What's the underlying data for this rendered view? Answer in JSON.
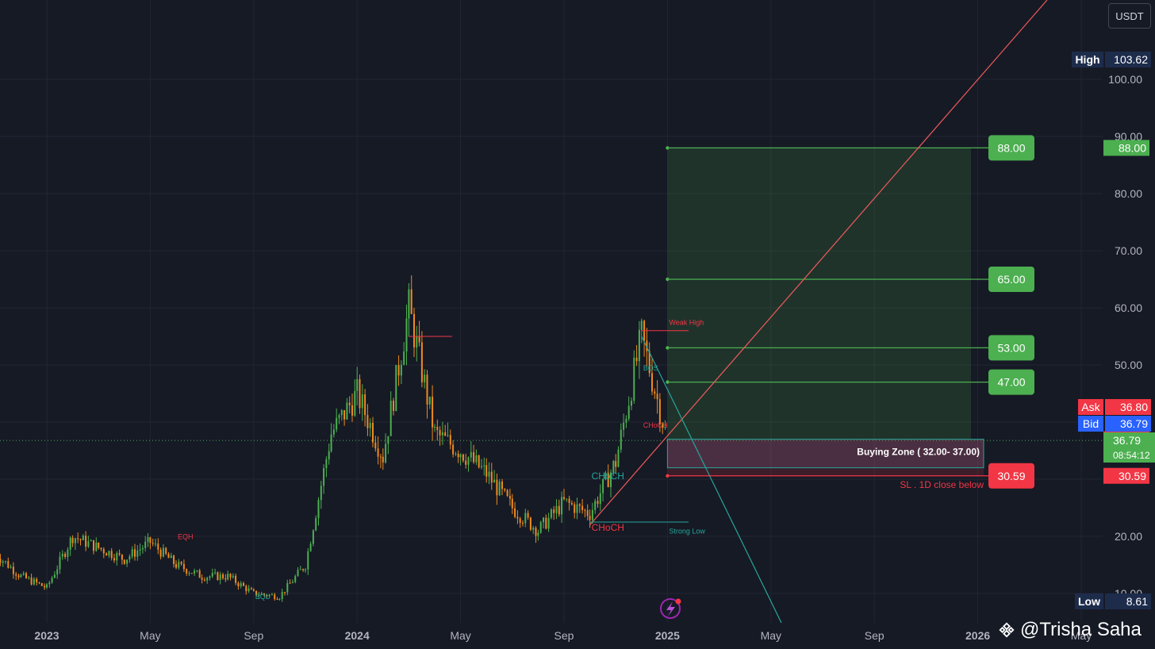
{
  "currency_button": "USDT",
  "watermark": "@Trisha Saha",
  "colors": {
    "background": "#161a25",
    "grid": "#232632",
    "up_candle": "#4caf50",
    "down_candle": "#ef8a1f",
    "target_green": "#4caf50",
    "stop_red": "#f23645",
    "trendline_red": "#f05a5a",
    "trendline_teal": "#26a69a",
    "ask": "#f23645",
    "bid": "#2962ff",
    "high_low_badge": "#1e2c4c"
  },
  "chart_data": {
    "type": "candlestick",
    "pair_currency": "USDT",
    "x_ticks": [
      "2023",
      "May",
      "Sep",
      "2024",
      "May",
      "Sep",
      "2025",
      "May",
      "Sep",
      "2026",
      "May"
    ],
    "y_ticks": [
      "10.00",
      "20.00",
      "30.00",
      "40.00",
      "50.00",
      "60.00",
      "70.00",
      "80.00",
      "90.00",
      "100.00"
    ],
    "ylim": [
      8,
      112
    ],
    "xlim": [
      "2022-11",
      "2026-05"
    ],
    "price_path": [
      {
        "t": "2022-11",
        "p": 17
      },
      {
        "t": "2022-12",
        "p": 13
      },
      {
        "t": "2023-01",
        "p": 11
      },
      {
        "t": "2023-02",
        "p": 20
      },
      {
        "t": "2023-03",
        "p": 18
      },
      {
        "t": "2023-04",
        "p": 16
      },
      {
        "t": "2023-05",
        "p": 19
      },
      {
        "t": "2023-06",
        "p": 15
      },
      {
        "t": "2023-07",
        "p": 13
      },
      {
        "t": "2023-08",
        "p": 13
      },
      {
        "t": "2023-09",
        "p": 10
      },
      {
        "t": "2023-10",
        "p": 9.5
      },
      {
        "t": "2023-11",
        "p": 15
      },
      {
        "t": "2023-12",
        "p": 38
      },
      {
        "t": "2024-01",
        "p": 45
      },
      {
        "t": "2024-02",
        "p": 34
      },
      {
        "t": "2024-03",
        "p": 60
      },
      {
        "t": "2024-04",
        "p": 38
      },
      {
        "t": "2024-05",
        "p": 35
      },
      {
        "t": "2024-06",
        "p": 31
      },
      {
        "t": "2024-07",
        "p": 25
      },
      {
        "t": "2024-08",
        "p": 21
      },
      {
        "t": "2024-09",
        "p": 26
      },
      {
        "t": "2024-10",
        "p": 24
      },
      {
        "t": "2024-11",
        "p": 33
      },
      {
        "t": "2024-12",
        "p": 55
      },
      {
        "t": "2025-01",
        "p": 36.8
      }
    ],
    "high": "103.62",
    "low": "8.61",
    "current_price": "36.79",
    "countdown": "08:54:12",
    "ask": "36.80",
    "bid": "36.79",
    "ask_label": "Ask",
    "bid_label": "Bid",
    "high_label": "High",
    "low_label": "Low",
    "targets": [
      {
        "label": "88.00",
        "price": 88
      },
      {
        "label": "65.00",
        "price": 65
      },
      {
        "label": "53.00",
        "price": 53
      },
      {
        "label": "47.00",
        "price": 47
      }
    ],
    "entry_price": 37,
    "entry_label": "37.00",
    "stop_loss": {
      "label": "30.59",
      "price": 30.59
    },
    "buying_zone": {
      "low": 32,
      "high": 37,
      "label": "Buying Zone ( 32.00- 37.00)"
    },
    "sl_note": "SL . 1D close below",
    "annotations": [
      {
        "text": "Weak High",
        "t": "2025-01",
        "price": 57
      },
      {
        "text": "Strong Low",
        "t": "2025-01",
        "price": 20.5
      },
      {
        "text": "CHoCH",
        "t": "2024-10",
        "price": 30
      },
      {
        "text": "CHoCH",
        "t": "2024-10",
        "price": 21
      },
      {
        "text": "CHoCH",
        "t": "2024-12",
        "price": 39
      },
      {
        "text": "BOS",
        "t": "2024-12",
        "price": 49
      },
      {
        "text": "EQH",
        "t": "2023-06",
        "price": 19.5
      },
      {
        "text": "EQL",
        "t": "2023-09",
        "price": 9
      }
    ]
  }
}
